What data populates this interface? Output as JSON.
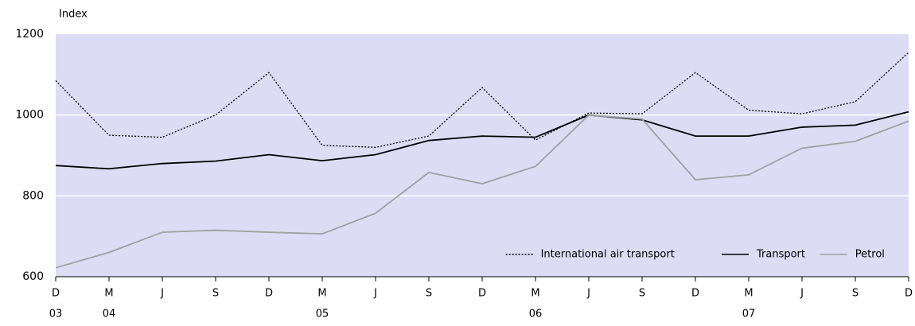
{
  "chart_data": {
    "type": "line",
    "y_label": "Index",
    "categories": [
      "D",
      "M",
      "J",
      "S",
      "D",
      "M",
      "J",
      "S",
      "D",
      "M",
      "J",
      "S",
      "D",
      "M",
      "J",
      "S",
      "D"
    ],
    "year_labels": [
      "03",
      "04",
      null,
      null,
      null,
      "05",
      null,
      null,
      null,
      "06",
      null,
      null,
      null,
      "07",
      null,
      null,
      null
    ],
    "series": [
      {
        "name": "International air transport",
        "color": "#000000",
        "style": "dotted",
        "values": [
          1085,
          950,
          945,
          1000,
          1105,
          925,
          920,
          948,
          1068,
          938,
          1005,
          1003,
          1105,
          1012,
          1003,
          1033,
          1155
        ]
      },
      {
        "name": "Transport",
        "color": "#000000",
        "style": "solid",
        "values": [
          875,
          867,
          880,
          886,
          902,
          887,
          902,
          937,
          948,
          945,
          1000,
          988,
          948,
          948,
          970,
          975,
          1008
        ]
      },
      {
        "name": "Petrol",
        "color": "#a0a0a0",
        "style": "solid",
        "values": [
          622,
          660,
          710,
          715,
          710,
          706,
          757,
          858,
          830,
          873,
          1000,
          990,
          840,
          852,
          918,
          935,
          985
        ]
      }
    ],
    "ylim": [
      600,
      1200
    ],
    "yticks": [
      600,
      800,
      1000,
      1200
    ],
    "grid": true,
    "legend": "bottom-right",
    "background": "#dcdcf4"
  }
}
